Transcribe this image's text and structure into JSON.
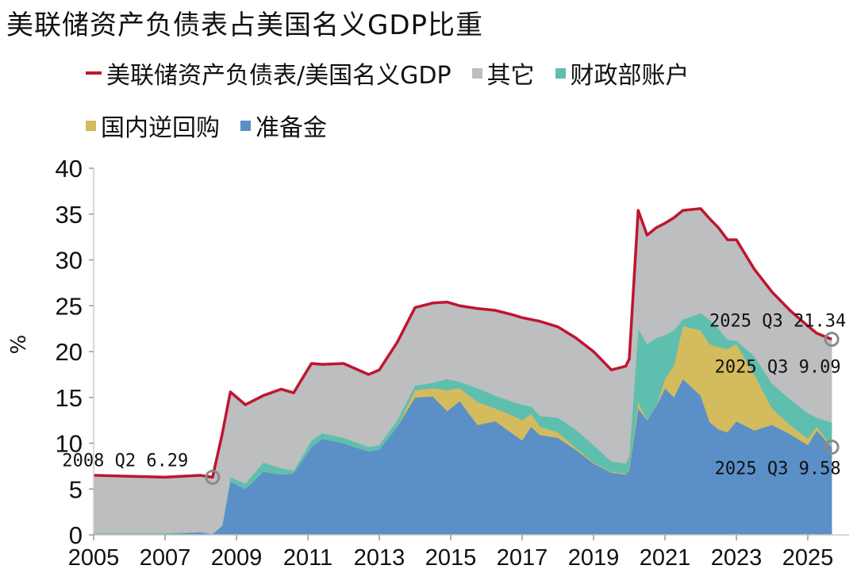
{
  "chart_data": {
    "type": "area",
    "title": "美联储资产负债表占美国名义GDP比重",
    "xlabel": "",
    "ylabel": "%",
    "xlim": [
      2005,
      2026.2
    ],
    "ylim": [
      0,
      40
    ],
    "x_ticks": [
      "2005",
      "2007",
      "2009",
      "2011",
      "2013",
      "2015",
      "2017",
      "2019",
      "2021",
      "2023",
      "2025"
    ],
    "y_ticks": [
      "0",
      "5",
      "10",
      "15",
      "20",
      "25",
      "30",
      "35",
      "40"
    ],
    "legend_placement": "top",
    "grid": false,
    "colors": {
      "line": "#c0152f",
      "other": "#bcbec0",
      "tga": "#5fbfae",
      "rrp": "#d4bb5e",
      "reserves": "#5b8fc7"
    },
    "legend": {
      "line": "美联储资产负债表/美国名义GDP",
      "other": "其它",
      "tga": "财政部账户",
      "rrp": "国内逆回购",
      "reserves": "准备金"
    },
    "x": [
      2005.0,
      2006.0,
      2007.0,
      2008.0,
      2008.33,
      2008.6,
      2008.83,
      2009.25,
      2009.75,
      2010.25,
      2010.6,
      2011.1,
      2011.4,
      2012.0,
      2012.7,
      2013.0,
      2013.5,
      2014.0,
      2014.5,
      2014.9,
      2015.25,
      2015.75,
      2016.25,
      2016.75,
      2017.0,
      2017.25,
      2017.5,
      2018.0,
      2018.5,
      2019.0,
      2019.5,
      2019.9,
      2020.0,
      2020.25,
      2020.5,
      2020.75,
      2021.0,
      2021.25,
      2021.5,
      2022.0,
      2022.25,
      2022.5,
      2022.75,
      2023.0,
      2023.5,
      2024.0,
      2024.5,
      2025.0,
      2025.25,
      2025.67
    ],
    "series": [
      {
        "name": "准备金",
        "key": "reserves",
        "values": [
          0.1,
          0.1,
          0.1,
          0.3,
          0.1,
          1.0,
          5.8,
          5.0,
          6.9,
          6.6,
          6.7,
          9.6,
          10.5,
          10.0,
          9.1,
          9.3,
          11.8,
          15.0,
          15.1,
          13.5,
          14.6,
          12.0,
          12.4,
          11.0,
          10.3,
          11.8,
          10.9,
          10.6,
          9.3,
          7.8,
          6.8,
          6.6,
          7.1,
          13.8,
          12.5,
          14.0,
          16.0,
          15.0,
          17.0,
          15.2,
          12.3,
          11.5,
          11.2,
          12.4,
          11.4,
          12.0,
          11.0,
          9.8,
          11.4,
          9.58
        ]
      },
      {
        "name": "国内逆回购",
        "key": "rrp",
        "values": [
          0,
          0,
          0,
          0,
          0,
          0,
          0,
          0,
          0,
          0,
          0,
          0,
          0,
          0,
          0,
          0,
          0,
          0.8,
          0.9,
          2.3,
          1.4,
          2.5,
          1.4,
          2.0,
          2.2,
          1.4,
          0.9,
          0.6,
          0.2,
          0.1,
          0.1,
          0.1,
          0.2,
          0.7,
          0,
          0,
          1.0,
          3.5,
          5.8,
          7.1,
          8.5,
          9.0,
          9.1,
          8.4,
          6.1,
          1.8,
          1.0,
          0.7,
          0.4,
          0.1
        ]
      },
      {
        "name": "财政部账户",
        "key": "tga",
        "values": [
          0.1,
          0.1,
          0.1,
          0,
          0,
          0,
          0.5,
          0.6,
          1.0,
          0.7,
          0.3,
          0.7,
          0.6,
          0.6,
          0.5,
          0.5,
          0.7,
          0.5,
          0.6,
          1.2,
          0.7,
          1.5,
          1.4,
          1.5,
          1.7,
          0.8,
          1.2,
          1.6,
          2.0,
          1.9,
          1.1,
          1.1,
          1.2,
          8.0,
          8.3,
          7.5,
          4.8,
          3.8,
          0.7,
          1.9,
          2.7,
          2.0,
          1.0,
          0.4,
          2.0,
          2.7,
          2.8,
          2.8,
          1.0,
          2.57
        ]
      },
      {
        "name": "其它",
        "key": "other",
        "values": [
          6.3,
          6.2,
          6.1,
          6.2,
          6.19,
          10.0,
          9.3,
          8.6,
          7.3,
          8.6,
          8.5,
          8.4,
          7.5,
          8.1,
          7.9,
          8.2,
          8.5,
          8.5,
          8.7,
          8.4,
          8.3,
          8.7,
          9.3,
          9.5,
          9.5,
          9.5,
          10.3,
          9.9,
          10.0,
          10.2,
          10.0,
          10.6,
          10.7,
          12.9,
          11.9,
          12.0,
          12.2,
          12.3,
          11.9,
          11.4,
          11.0,
          11.0,
          10.9,
          11.0,
          9.5,
          10.0,
          9.7,
          9.5,
          9.2,
          9.09
        ]
      },
      {
        "name": "美联储资产负债表/美国名义GDP",
        "key": "line",
        "values": [
          6.5,
          6.4,
          6.3,
          6.5,
          6.29,
          11.0,
          15.6,
          14.2,
          15.2,
          15.9,
          15.5,
          18.7,
          18.6,
          18.7,
          17.5,
          18.0,
          21.0,
          24.8,
          25.3,
          25.4,
          25.0,
          24.7,
          24.5,
          24.0,
          23.7,
          23.5,
          23.3,
          22.7,
          21.5,
          20.0,
          18.0,
          18.4,
          19.2,
          35.4,
          32.7,
          33.5,
          34.0,
          34.6,
          35.4,
          35.6,
          34.5,
          33.5,
          32.2,
          32.2,
          29.0,
          26.5,
          24.5,
          22.8,
          22.0,
          21.34
        ]
      }
    ],
    "annotations": [
      {
        "text": "2008 Q2 6.29",
        "x": 2008.33,
        "y": 6.29
      },
      {
        "text": "2025 Q3 21.34",
        "x": 2025.67,
        "y": 21.34
      },
      {
        "text": "2025 Q3 9.09",
        "x": 2025.67,
        "y": 9.09
      },
      {
        "text": "2025 Q3 9.58",
        "x": 2025.67,
        "y": 9.58
      }
    ]
  }
}
